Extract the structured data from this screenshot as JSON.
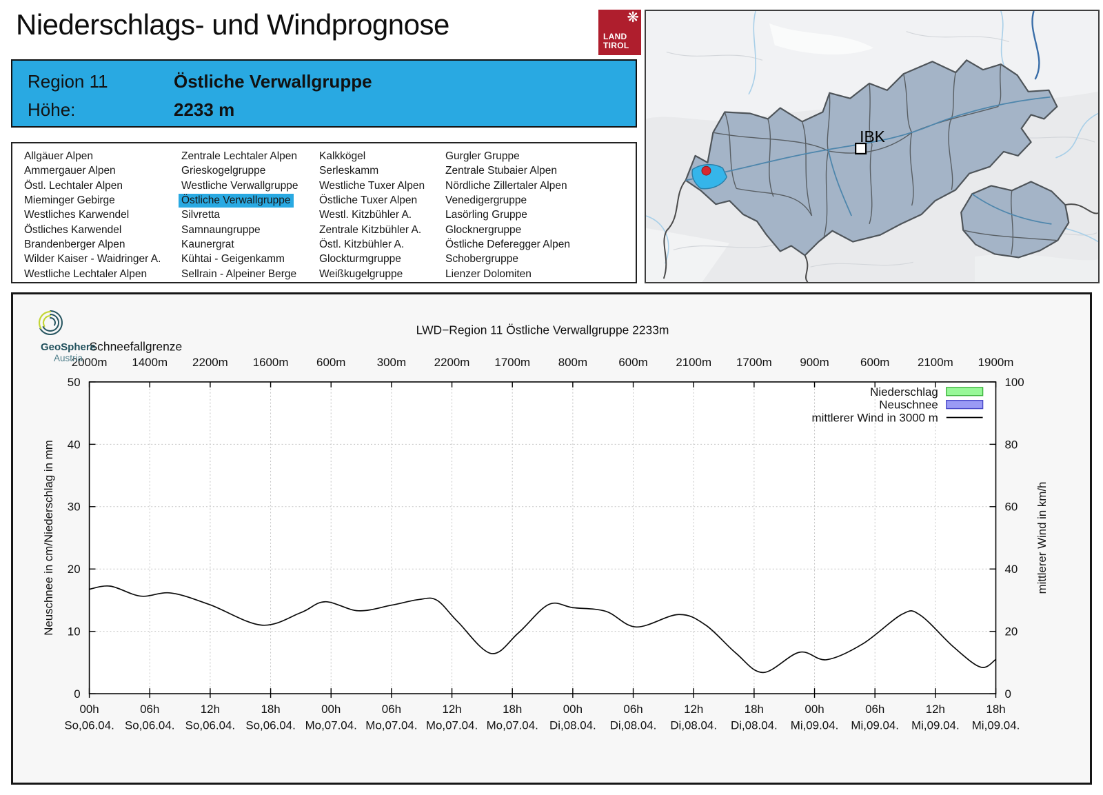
{
  "page": {
    "title": "Niederschlags- und Windprognose"
  },
  "logo_tirol": {
    "line1": "LAND",
    "line2": "TIROL"
  },
  "region_header": {
    "region_label": "Region 11",
    "region_name": "Östliche Verwallgruppe",
    "altitude_label": "Höhe:",
    "altitude_value": "2233 m"
  },
  "region_list": {
    "selected": "Östliche Verwallgruppe",
    "columns": [
      [
        "Allgäuer Alpen",
        "Ammergauer Alpen",
        "Östl. Lechtaler Alpen",
        "Mieminger Gebirge",
        "Westliches Karwendel",
        "Östliches Karwendel",
        "Brandenberger Alpen",
        "Wilder Kaiser - Waidringer A.",
        "Westliche Lechtaler Alpen"
      ],
      [
        "Zentrale Lechtaler Alpen",
        "Grieskogelgruppe",
        "Westliche Verwallgruppe",
        "Östliche Verwallgruppe",
        "Silvretta",
        "Samnaungruppe",
        "Kaunergrat",
        "Kühtai - Geigenkamm",
        "Sellrain - Alpeiner Berge"
      ],
      [
        "Kalkkögel",
        "Serleskamm",
        "Westliche Tuxer Alpen",
        "Östliche Tuxer Alpen",
        "Westl. Kitzbühler A.",
        "Zentrale Kitzbühler A.",
        "Östl. Kitzbühler A.",
        "Glockturmgruppe",
        "Weißkugelgruppe"
      ],
      [
        "Gurgler Gruppe",
        "Zentrale Stubaier Alpen",
        "Nördliche Zillertaler Alpen",
        "Venedigergruppe",
        "Lasörling Gruppe",
        "Glocknergruppe",
        "Östliche Deferegger Alpen",
        "Schobergruppe",
        "Lienzer Dolomiten"
      ]
    ]
  },
  "map": {
    "city_label": "IBK"
  },
  "geosphere_logo": {
    "line1": "GeoSphere",
    "line2": "Austria"
  },
  "colors": {
    "accent_blue": "#29A9E2",
    "tirol_red": "#AF1E2D",
    "map_region_fill": "#A4B4C7",
    "map_selected_fill": "#35B5EA",
    "map_marker_red": "#D7282F",
    "legend_green_fill": "#98F898",
    "legend_green_stroke": "#3CB43C",
    "legend_blue_fill": "#9A9AF5",
    "legend_blue_stroke": "#4848C8",
    "wind_line": "#0a0a0a"
  },
  "chart_data": {
    "type": "line",
    "title": "LWD−Region 11 Östliche Verwallgruppe 2233m",
    "top_axis_label": "Schneefallgrenze",
    "snowline_labels": [
      "2000m",
      "1400m",
      "2200m",
      "1600m",
      "600m",
      "300m",
      "2200m",
      "1700m",
      "800m",
      "600m",
      "2100m",
      "1700m",
      "900m",
      "600m",
      "2100m",
      "1900m"
    ],
    "x_tick_hours": [
      "00h",
      "06h",
      "12h",
      "18h",
      "00h",
      "06h",
      "12h",
      "18h",
      "00h",
      "06h",
      "12h",
      "18h",
      "00h",
      "06h",
      "12h",
      "18h"
    ],
    "x_tick_dates": [
      "So,06.04.",
      "So,06.04.",
      "So,06.04.",
      "So,06.04.",
      "Mo,07.04.",
      "Mo,07.04.",
      "Mo,07.04.",
      "Mo,07.04.",
      "Di,08.04.",
      "Di,08.04.",
      "Di,08.04.",
      "Di,08.04.",
      "Mi,09.04.",
      "Mi,09.04.",
      "Mi,09.04.",
      "Mi,09.04."
    ],
    "ylabel_left": "Neuschnee in cm/Niederschlag in mm",
    "ylabel_right": "mittlerer Wind in km/h",
    "yticks_left": [
      0,
      10,
      20,
      30,
      40,
      50
    ],
    "yticks_right": [
      0,
      20,
      40,
      60,
      80,
      100
    ],
    "ylim_left": [
      0,
      50
    ],
    "ylim_right": [
      0,
      100
    ],
    "grid": "dotted",
    "legend_position": "top-right",
    "legend": [
      {
        "label": "Niederschlag",
        "type": "box",
        "fill": "#98F898",
        "stroke": "#3CB43C"
      },
      {
        "label": "Neuschnee",
        "type": "box",
        "fill": "#9A9AF5",
        "stroke": "#4848C8"
      },
      {
        "label": "mittlerer Wind in 3000 m",
        "type": "line",
        "stroke": "#000000"
      }
    ],
    "series": [
      {
        "name": "mittlerer Wind in 3000 m",
        "axis": "right",
        "unit": "km/h",
        "x_unit": "6h steps from So 06.04. 00h",
        "points": [
          [
            0,
            33.5
          ],
          [
            0.35,
            34.5
          ],
          [
            0.85,
            31.3
          ],
          [
            1.35,
            32.3
          ],
          [
            2,
            28.5
          ],
          [
            2.85,
            22
          ],
          [
            3.5,
            26
          ],
          [
            3.9,
            29.5
          ],
          [
            4.45,
            26.6
          ],
          [
            5,
            28.4
          ],
          [
            5.45,
            30.2
          ],
          [
            5.75,
            30
          ],
          [
            6.1,
            23
          ],
          [
            6.65,
            12.9
          ],
          [
            7.1,
            19.5
          ],
          [
            7.6,
            28.6
          ],
          [
            8,
            27.6
          ],
          [
            8.55,
            26.4
          ],
          [
            9.05,
            21.4
          ],
          [
            9.75,
            25.4
          ],
          [
            10.2,
            22
          ],
          [
            10.7,
            13
          ],
          [
            11.15,
            6.8
          ],
          [
            11.75,
            13.3
          ],
          [
            12.2,
            10.9
          ],
          [
            12.8,
            16
          ],
          [
            13.45,
            25.5
          ],
          [
            13.75,
            25.2
          ],
          [
            14.3,
            15
          ],
          [
            14.75,
            8.5
          ],
          [
            15,
            11
          ]
        ]
      },
      {
        "name": "Niederschlag",
        "axis": "left",
        "unit": "mm",
        "points": []
      },
      {
        "name": "Neuschnee",
        "axis": "left",
        "unit": "cm",
        "points": []
      }
    ]
  }
}
